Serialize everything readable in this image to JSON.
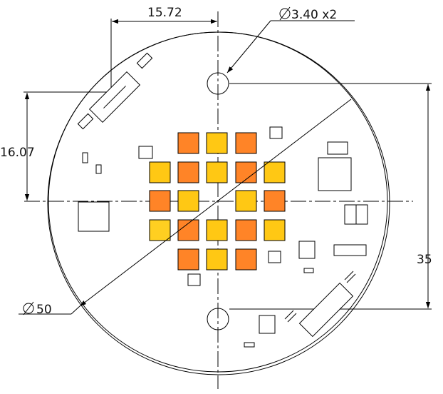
{
  "dimensions": {
    "board_diameter": "∕50",
    "board_diameter_value": "50",
    "hole_diameter_value": "3.40 x2",
    "horizontal_offset": "15.72",
    "vertical_offset": "16.07",
    "hole_spacing": "35"
  },
  "led_colors": {
    "orange": "#FF8427",
    "yellow": "#FFC814",
    "light": "#FFCF21"
  }
}
